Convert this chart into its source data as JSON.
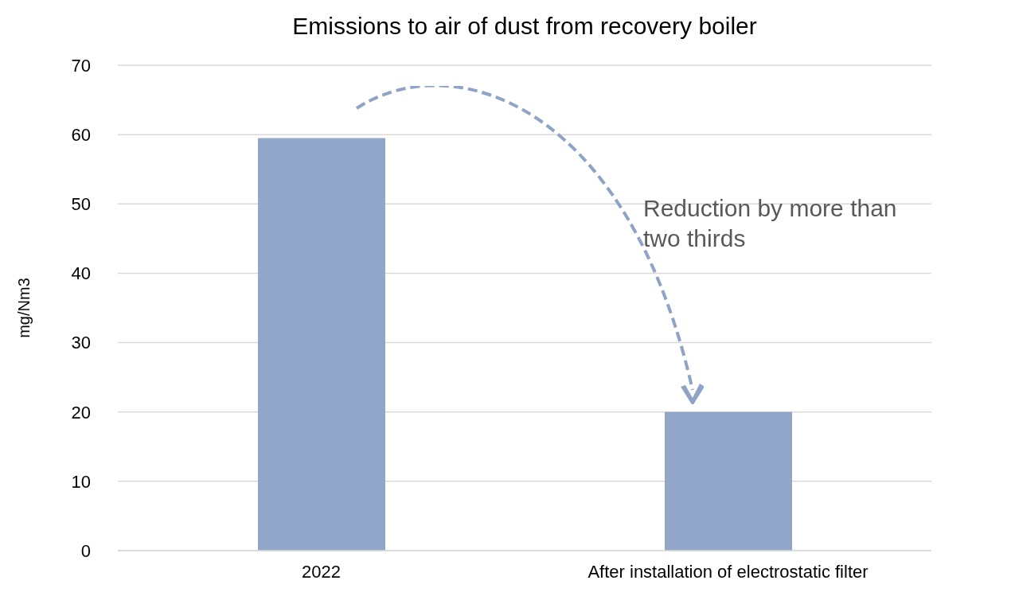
{
  "chart_data": {
    "type": "bar",
    "title": "Emissions to air of dust from recovery boiler",
    "ylabel": "mg/Nm3",
    "categories": [
      "2022",
      "After installation of electrostatic filter"
    ],
    "values": [
      59.5,
      20
    ],
    "color": "#91a6c9",
    "ylim": [
      0,
      70
    ],
    "yticks": [
      0,
      10,
      20,
      30,
      40,
      50,
      60,
      70
    ],
    "grid": "y",
    "annotations": [
      "Reduction by more than two thirds"
    ]
  }
}
